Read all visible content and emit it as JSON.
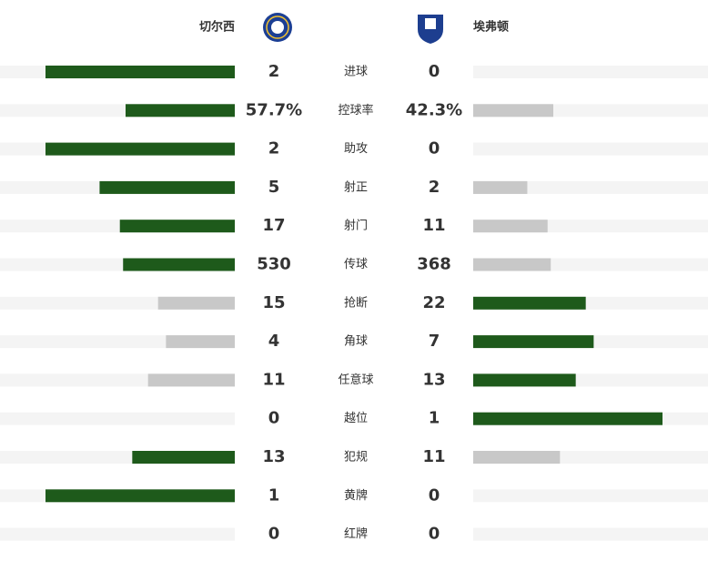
{
  "header": {
    "home_team": "切尔西",
    "away_team": "埃弗顿"
  },
  "colors": {
    "leading": "#1e5a1b",
    "trailing": "#c8c8c8",
    "track": "#f4f4f4"
  },
  "stats": [
    {
      "label": "进球",
      "home": 2,
      "away": 0
    },
    {
      "label": "控球率",
      "home": 57.7,
      "away": 42.3,
      "home_label": "57.7%",
      "away_label": "42.3%"
    },
    {
      "label": "助攻",
      "home": 2,
      "away": 0
    },
    {
      "label": "射正",
      "home": 5,
      "away": 2
    },
    {
      "label": "射门",
      "home": 17,
      "away": 11
    },
    {
      "label": "传球",
      "home": 530,
      "away": 368
    },
    {
      "label": "抢断",
      "home": 15,
      "away": 22
    },
    {
      "label": "角球",
      "home": 4,
      "away": 7
    },
    {
      "label": "任意球",
      "home": 11,
      "away": 13
    },
    {
      "label": "越位",
      "home": 0,
      "away": 1
    },
    {
      "label": "犯规",
      "home": 13,
      "away": 11
    },
    {
      "label": "黄牌",
      "home": 1,
      "away": 0
    },
    {
      "label": "红牌",
      "home": 0,
      "away": 0
    }
  ]
}
